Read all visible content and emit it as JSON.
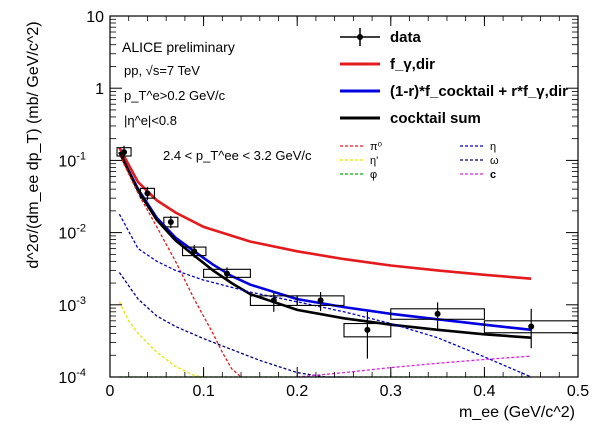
{
  "chart_data": {
    "type": "line",
    "title": "",
    "xlabel": "m_ee (GeV/c^2)",
    "ylabel": "d^2σ/(dm_ee dp_T) (mb/ GeV/c^2)",
    "xlim": [
      0,
      0.5
    ],
    "ylim": [
      0.0001,
      10
    ],
    "yscale": "log",
    "x_ticks": [
      "0",
      "0.1",
      "0.2",
      "0.3",
      "0.4",
      "0.5"
    ],
    "y_ticks": [
      "10^-4",
      "10^-3",
      "10^-2",
      "10^-1",
      "1",
      "10"
    ],
    "grid": false,
    "legend_position": "top-right",
    "annotations": {
      "experiment": "ALICE preliminary",
      "system": "pp, √s=7 TeV",
      "pt_cut": "p_T^e>0.2 GeV/c",
      "eta_cut": "|η^e|<0.8",
      "pt_range": "2.4 < p_T^ee < 3.2 GeV/c"
    },
    "legend_main": [
      {
        "label": "data",
        "color": "#000000",
        "style": "marker"
      },
      {
        "label": "f_γ,dir",
        "color": "#e41a1c",
        "style": "solid"
      },
      {
        "label": "(1-r)*f_cocktail + r*f_γ,dir",
        "color": "#0000e0",
        "style": "solid"
      },
      {
        "label": "cocktail sum",
        "color": "#000000",
        "style": "solid"
      }
    ],
    "legend_components": [
      {
        "label": "π⁰",
        "color": "#e41a1c"
      },
      {
        "label": "η",
        "color": "#0000cc"
      },
      {
        "label": "η'",
        "color": "#e6e600"
      },
      {
        "label": "ω",
        "color": "#000080"
      },
      {
        "label": "φ",
        "color": "#00b000"
      },
      {
        "label": "c",
        "color": "#e020e0"
      }
    ],
    "data_points": {
      "x": [
        0.015,
        0.04,
        0.065,
        0.09,
        0.125,
        0.175,
        0.225,
        0.275,
        0.35,
        0.45
      ],
      "y": [
        0.13,
        0.035,
        0.014,
        0.0055,
        0.0027,
        0.00115,
        0.00115,
        0.00045,
        0.00075,
        0.0005
      ],
      "x_err": [
        0.0075,
        0.0075,
        0.0075,
        0.0125,
        0.025,
        0.025,
        0.025,
        0.025,
        0.05,
        0.05
      ],
      "y_stat_low": [
        0.11,
        0.028,
        0.0115,
        0.0045,
        0.0022,
        0.0008,
        0.00082,
        0.00018,
        0.00045,
        0.00025
      ],
      "y_stat_high": [
        0.16,
        0.043,
        0.017,
        0.0067,
        0.0033,
        0.0015,
        0.0015,
        0.0008,
        0.00108,
        0.00088
      ],
      "y_sys_low": [
        0.115,
        0.03,
        0.012,
        0.0048,
        0.0024,
        0.00098,
        0.00098,
        0.00036,
        0.00063,
        0.00041
      ],
      "y_sys_high": [
        0.15,
        0.041,
        0.0163,
        0.0063,
        0.0031,
        0.00133,
        0.00133,
        0.00055,
        0.00088,
        0.0006
      ]
    },
    "series": [
      {
        "name": "f_γ,dir",
        "color": "#e41a1c",
        "dash": "none",
        "x": [
          0.01,
          0.03,
          0.05,
          0.07,
          0.1,
          0.15,
          0.2,
          0.25,
          0.3,
          0.35,
          0.4,
          0.45
        ],
        "y": [
          0.15,
          0.05,
          0.028,
          0.019,
          0.012,
          0.0075,
          0.0055,
          0.0043,
          0.0035,
          0.003,
          0.0026,
          0.0023
        ]
      },
      {
        "name": "(1-r)*f_cocktail + r*f_γ,dir",
        "color": "#0000e0",
        "dash": "none",
        "x": [
          0.01,
          0.03,
          0.05,
          0.07,
          0.09,
          0.11,
          0.13,
          0.15,
          0.2,
          0.25,
          0.3,
          0.35,
          0.4,
          0.45
        ],
        "y": [
          0.13,
          0.04,
          0.016,
          0.0085,
          0.0055,
          0.0036,
          0.0025,
          0.0019,
          0.0012,
          0.00093,
          0.00075,
          0.00063,
          0.00053,
          0.00045
        ]
      },
      {
        "name": "cocktail sum",
        "color": "#000000",
        "dash": "none",
        "x": [
          0.01,
          0.03,
          0.05,
          0.07,
          0.09,
          0.11,
          0.13,
          0.15,
          0.2,
          0.25,
          0.3,
          0.35,
          0.4,
          0.45
        ],
        "y": [
          0.13,
          0.038,
          0.015,
          0.0078,
          0.0048,
          0.003,
          0.002,
          0.0014,
          0.00085,
          0.00065,
          0.00053,
          0.00045,
          0.00039,
          0.00035
        ]
      },
      {
        "name": "π⁰",
        "color": "#e41a1c",
        "dash": "3,2",
        "x": [
          0.01,
          0.03,
          0.05,
          0.07,
          0.09,
          0.11,
          0.12,
          0.13,
          0.14
        ],
        "y": [
          0.12,
          0.035,
          0.012,
          0.004,
          0.0012,
          0.0004,
          0.00022,
          0.00013,
          0.0001
        ]
      },
      {
        "name": "η",
        "color": "#0000cc",
        "dash": "3,2",
        "x": [
          0.01,
          0.03,
          0.05,
          0.07,
          0.1,
          0.15,
          0.2,
          0.25,
          0.3,
          0.35,
          0.4,
          0.45
        ],
        "y": [
          0.018,
          0.006,
          0.004,
          0.003,
          0.0022,
          0.0015,
          0.0011,
          0.0008,
          0.00055,
          0.00035,
          0.00019,
          0.0001
        ]
      },
      {
        "name": "η'",
        "color": "#e6e600",
        "dash": "3,2",
        "x": [
          0.01,
          0.02,
          0.03,
          0.05,
          0.07,
          0.09,
          0.1
        ],
        "y": [
          0.0011,
          0.0006,
          0.0004,
          0.00022,
          0.00014,
          0.000105,
          0.0001
        ]
      },
      {
        "name": "ω",
        "color": "#000080",
        "dash": "3,2",
        "x": [
          0.01,
          0.03,
          0.05,
          0.07,
          0.1,
          0.13,
          0.16,
          0.2,
          0.23,
          0.25
        ],
        "y": [
          0.0028,
          0.0012,
          0.0007,
          0.0005,
          0.00034,
          0.00024,
          0.00017,
          0.000115,
          0.0001,
          0.0001
        ]
      },
      {
        "name": "φ",
        "color": "#00b000",
        "dash": "3,2",
        "x": [
          0.01,
          0.45
        ],
        "y": [
          0.0001,
          0.0001
        ]
      },
      {
        "name": "c",
        "color": "#e020e0",
        "dash": "3,2",
        "x": [
          0.2,
          0.25,
          0.3,
          0.35,
          0.4,
          0.45
        ],
        "y": [
          0.0001,
          0.000115,
          0.000135,
          0.000155,
          0.000175,
          0.000195
        ]
      }
    ]
  }
}
